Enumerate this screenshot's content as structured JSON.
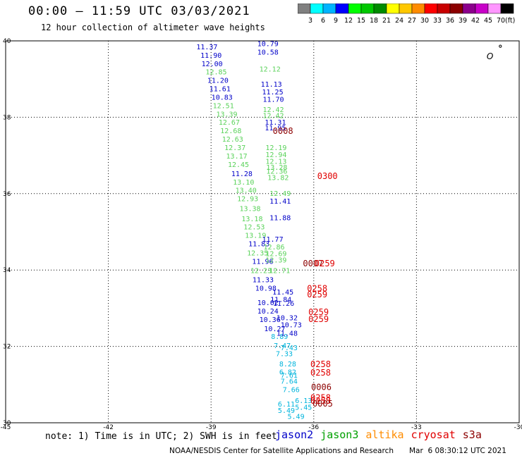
{
  "header": {
    "title": "00:00 – 11:59 UTC 03/03/2021",
    "subtitle": "12 hour collection of altimeter wave heights"
  },
  "colorbar": {
    "unit_label": "(ft)",
    "stops": [
      {
        "label": "3",
        "color": "#808080"
      },
      {
        "label": "6",
        "color": "#00ffff"
      },
      {
        "label": "9",
        "color": "#00b4ff"
      },
      {
        "label": "12",
        "color": "#0000ff"
      },
      {
        "label": "15",
        "color": "#00ff00"
      },
      {
        "label": "18",
        "color": "#00c800"
      },
      {
        "label": "21",
        "color": "#008c00"
      },
      {
        "label": "24",
        "color": "#ffff00"
      },
      {
        "label": "27",
        "color": "#ffc800"
      },
      {
        "label": "30",
        "color": "#ff8c00"
      },
      {
        "label": "33",
        "color": "#ff0000"
      },
      {
        "label": "36",
        "color": "#c80000"
      },
      {
        "label": "39",
        "color": "#8c0000"
      },
      {
        "label": "42",
        "color": "#8c008c"
      },
      {
        "label": "45",
        "color": "#c800c8"
      },
      {
        "label": "70",
        "color": "#ff96ff"
      },
      {
        "label": "",
        "color": "#000000"
      }
    ]
  },
  "map": {
    "lon_ticks": [
      "-45",
      "-42",
      "-39",
      "-36",
      "-33",
      "-30"
    ],
    "lat_ticks": [
      "40",
      "38",
      "36",
      "34",
      "32",
      "30"
    ],
    "lon_range": [
      -45,
      -30
    ],
    "lat_range": [
      30,
      40
    ],
    "grid": true,
    "island_label": "O",
    "colors": {
      "jason2": "#0000c8",
      "jason3": "#5ad25a",
      "altika": "#ff8c00",
      "cryosat": "#e00000",
      "s3a": "#8c0000",
      "cyan": "#00b4dc"
    },
    "observations": [
      {
        "lon": -39.12,
        "lat": 39.78,
        "text": "11.37",
        "c": "jason2"
      },
      {
        "lon": -39.0,
        "lat": 39.56,
        "text": "11.90",
        "c": "jason2"
      },
      {
        "lon": -38.97,
        "lat": 39.34,
        "text": "12.00",
        "c": "jason2"
      },
      {
        "lon": -38.85,
        "lat": 39.12,
        "text": "12.85",
        "c": "jason3"
      },
      {
        "lon": -38.8,
        "lat": 38.9,
        "text": "11.20",
        "c": "jason2"
      },
      {
        "lon": -38.74,
        "lat": 38.68,
        "text": "11.61",
        "c": "jason2"
      },
      {
        "lon": -38.68,
        "lat": 38.46,
        "text": "10.83",
        "c": "jason2"
      },
      {
        "lon": -38.64,
        "lat": 38.24,
        "text": "12.51",
        "c": "jason3"
      },
      {
        "lon": -38.54,
        "lat": 38.02,
        "text": "13.39",
        "c": "jason3"
      },
      {
        "lon": -38.47,
        "lat": 37.8,
        "text": "12.67",
        "c": "jason3"
      },
      {
        "lon": -38.42,
        "lat": 37.58,
        "text": "12.68",
        "c": "jason3"
      },
      {
        "lon": -38.37,
        "lat": 37.36,
        "text": "12.63",
        "c": "jason3"
      },
      {
        "lon": -38.3,
        "lat": 37.14,
        "text": "12.37",
        "c": "jason3"
      },
      {
        "lon": -38.25,
        "lat": 36.92,
        "text": "13.17",
        "c": "jason3"
      },
      {
        "lon": -38.2,
        "lat": 36.7,
        "text": "12.45",
        "c": "jason3"
      },
      {
        "lon": -38.1,
        "lat": 36.46,
        "text": "11.28",
        "c": "jason2"
      },
      {
        "lon": -38.05,
        "lat": 36.24,
        "text": "13.10",
        "c": "jason3"
      },
      {
        "lon": -37.98,
        "lat": 36.02,
        "text": "13.40",
        "c": "jason3"
      },
      {
        "lon": -37.93,
        "lat": 35.8,
        "text": "12.93",
        "c": "jason3"
      },
      {
        "lon": -37.86,
        "lat": 35.54,
        "text": "13.38",
        "c": "jason3"
      },
      {
        "lon": -37.8,
        "lat": 35.28,
        "text": "13.18",
        "c": "jason3"
      },
      {
        "lon": -37.74,
        "lat": 35.06,
        "text": "12.53",
        "c": "jason3"
      },
      {
        "lon": -37.7,
        "lat": 34.84,
        "text": "13.19",
        "c": "jason3"
      },
      {
        "lon": -37.6,
        "lat": 34.62,
        "text": "11.83",
        "c": "jason2"
      },
      {
        "lon": -37.64,
        "lat": 34.38,
        "text": "12.35",
        "c": "jason3"
      },
      {
        "lon": -37.49,
        "lat": 34.16,
        "text": "11.96",
        "c": "jason2"
      },
      {
        "lon": -37.54,
        "lat": 33.92,
        "text": "12.23",
        "c": "jason3"
      },
      {
        "lon": -37.48,
        "lat": 33.68,
        "text": "11.33",
        "c": "jason2"
      },
      {
        "lon": -37.4,
        "lat": 33.46,
        "text": "10.98",
        "c": "jason2"
      },
      {
        "lon": -37.34,
        "lat": 33.08,
        "text": "10.02",
        "c": "jason2"
      },
      {
        "lon": -37.34,
        "lat": 32.86,
        "text": "10.24",
        "c": "jason2"
      },
      {
        "lon": -37.28,
        "lat": 32.64,
        "text": "10.36",
        "c": "jason2"
      },
      {
        "lon": -37.14,
        "lat": 32.4,
        "text": "10.27",
        "c": "jason2"
      },
      {
        "lon": -37.0,
        "lat": 32.2,
        "text": "8.89",
        "c": "cyan"
      },
      {
        "lon": -36.92,
        "lat": 31.96,
        "text": "7.47",
        "c": "cyan"
      },
      {
        "lon": -36.86,
        "lat": 31.74,
        "text": "7.33",
        "c": "cyan"
      },
      {
        "lon": -36.76,
        "lat": 31.48,
        "text": "8.28",
        "c": "cyan"
      },
      {
        "lon": -36.76,
        "lat": 31.26,
        "text": "6.82",
        "c": "cyan"
      },
      {
        "lon": -36.72,
        "lat": 31.02,
        "text": "7.64",
        "c": "cyan"
      },
      {
        "lon": -36.66,
        "lat": 30.8,
        "text": "7.66",
        "c": "cyan"
      },
      {
        "lon": -36.3,
        "lat": 30.52,
        "text": "6.13",
        "c": "cyan"
      },
      {
        "lon": -36.8,
        "lat": 30.42,
        "text": "6.11",
        "c": "cyan"
      },
      {
        "lon": -36.8,
        "lat": 30.26,
        "text": "5.49",
        "c": "cyan"
      },
      {
        "lon": -36.52,
        "lat": 30.1,
        "text": "5.49",
        "c": "cyan"
      },
      {
        "lon": -36.3,
        "lat": 30.34,
        "text": "5.45",
        "c": "cyan"
      },
      {
        "lon": -37.34,
        "lat": 39.86,
        "text": "10.79",
        "c": "jason2"
      },
      {
        "lon": -37.34,
        "lat": 39.64,
        "text": "10.58",
        "c": "jason2"
      },
      {
        "lon": -37.28,
        "lat": 39.2,
        "text": "12.12",
        "c": "jason3"
      },
      {
        "lon": -37.24,
        "lat": 38.8,
        "text": "11.13",
        "c": "jason2"
      },
      {
        "lon": -37.2,
        "lat": 38.6,
        "text": "11.25",
        "c": "jason2"
      },
      {
        "lon": -37.18,
        "lat": 38.4,
        "text": "11.70",
        "c": "jason2"
      },
      {
        "lon": -37.18,
        "lat": 38.14,
        "text": "12.42",
        "c": "jason3"
      },
      {
        "lon": -37.18,
        "lat": 37.98,
        "text": "12.42",
        "c": "jason3"
      },
      {
        "lon": -37.12,
        "lat": 37.8,
        "text": "11.31",
        "c": "jason2"
      },
      {
        "lon": -37.12,
        "lat": 37.66,
        "text": "11.95",
        "c": "jason2"
      },
      {
        "lon": -37.1,
        "lat": 37.14,
        "text": "12.19",
        "c": "jason3"
      },
      {
        "lon": -37.1,
        "lat": 36.96,
        "text": "12.94",
        "c": "jason3"
      },
      {
        "lon": -37.1,
        "lat": 36.78,
        "text": "12.13",
        "c": "jason3"
      },
      {
        "lon": -37.08,
        "lat": 36.62,
        "text": "13.28",
        "c": "jason3"
      },
      {
        "lon": -37.08,
        "lat": 36.52,
        "text": "12.36",
        "c": "jason3"
      },
      {
        "lon": -37.04,
        "lat": 36.36,
        "text": "13.82",
        "c": "jason3"
      },
      {
        "lon": -36.98,
        "lat": 35.94,
        "text": "12.49",
        "c": "jason3"
      },
      {
        "lon": -36.98,
        "lat": 35.74,
        "text": "11.41",
        "c": "jason2"
      },
      {
        "lon": -36.98,
        "lat": 35.3,
        "text": "11.88",
        "c": "jason2"
      },
      {
        "lon": -37.2,
        "lat": 34.74,
        "text": "11.77",
        "c": "jason2"
      },
      {
        "lon": -37.16,
        "lat": 34.54,
        "text": "12.86",
        "c": "jason3"
      },
      {
        "lon": -37.1,
        "lat": 34.36,
        "text": "12.69",
        "c": "jason3"
      },
      {
        "lon": -37.1,
        "lat": 34.2,
        "text": "12.39",
        "c": "jason3"
      },
      {
        "lon": -37.0,
        "lat": 33.92,
        "text": "12.71",
        "c": "jason3"
      },
      {
        "lon": -36.9,
        "lat": 33.36,
        "text": "11.45",
        "c": "jason2"
      },
      {
        "lon": -36.96,
        "lat": 33.16,
        "text": "11.84",
        "c": "jason2"
      },
      {
        "lon": -36.88,
        "lat": 33.06,
        "text": "11.26",
        "c": "jason2"
      },
      {
        "lon": -36.78,
        "lat": 32.68,
        "text": "10.32",
        "c": "jason2"
      },
      {
        "lon": -36.66,
        "lat": 32.5,
        "text": "10.73",
        "c": "jason2"
      },
      {
        "lon": -36.78,
        "lat": 32.28,
        "text": "11.48",
        "c": "jason2"
      },
      {
        "lon": -36.72,
        "lat": 31.9,
        "text": "7.43",
        "c": "cyan"
      },
      {
        "lon": -36.72,
        "lat": 31.18,
        "text": "7.61",
        "c": "cyan"
      },
      {
        "lon": -36.9,
        "lat": 37.56,
        "text": "0008",
        "c": "s3a"
      },
      {
        "lon": -35.6,
        "lat": 36.38,
        "text": "0300",
        "c": "cryosat"
      },
      {
        "lon": -36.02,
        "lat": 34.1,
        "text": "0007",
        "c": "s3a"
      },
      {
        "lon": -35.68,
        "lat": 34.1,
        "text": "0259",
        "c": "cryosat"
      },
      {
        "lon": -35.9,
        "lat": 33.44,
        "text": "0258",
        "c": "cryosat"
      },
      {
        "lon": -35.9,
        "lat": 33.28,
        "text": "0259",
        "c": "cryosat"
      },
      {
        "lon": -35.86,
        "lat": 32.82,
        "text": "0259",
        "c": "cryosat"
      },
      {
        "lon": -35.86,
        "lat": 32.64,
        "text": "0259",
        "c": "cryosat"
      },
      {
        "lon": -35.8,
        "lat": 31.46,
        "text": "0258",
        "c": "cryosat"
      },
      {
        "lon": -35.8,
        "lat": 31.24,
        "text": "0258",
        "c": "cryosat"
      },
      {
        "lon": -35.78,
        "lat": 30.86,
        "text": "0006",
        "c": "s3a"
      },
      {
        "lon": -35.8,
        "lat": 30.58,
        "text": "0258",
        "c": "cryosat"
      },
      {
        "lon": -35.8,
        "lat": 30.5,
        "text": "0258",
        "c": "cryosat"
      },
      {
        "lon": -35.74,
        "lat": 30.42,
        "text": "0005",
        "c": "s3a"
      }
    ]
  },
  "note": "note: 1) Time is in UTC; 2) SWH is in feet",
  "legend": [
    {
      "label": "jason2",
      "color": "#0000c8"
    },
    {
      "label": "jason3",
      "color": "#00a000"
    },
    {
      "label": "altika",
      "color": "#ff8c00"
    },
    {
      "label": "cryosat",
      "color": "#e00000"
    },
    {
      "label": "s3a",
      "color": "#8c0000"
    }
  ],
  "footer": {
    "agency": "NOAA/NESDIS Center for Satellite Applications and Research",
    "generated": "Mar  6 08:30:12 UTC 2021"
  }
}
